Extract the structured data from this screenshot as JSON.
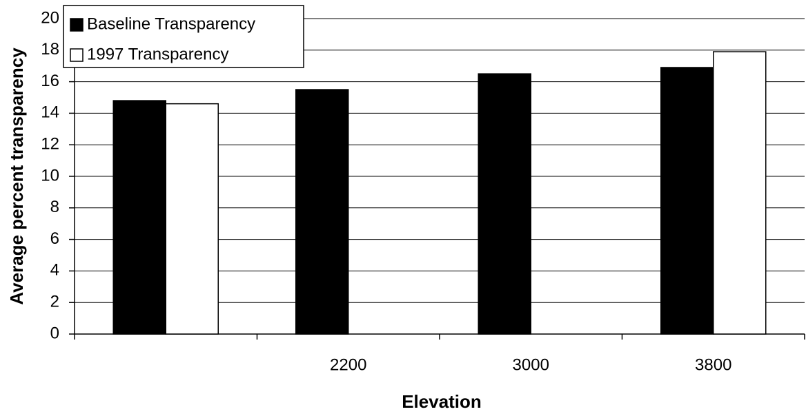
{
  "chart_data": {
    "type": "bar",
    "x_label": "Elevation",
    "y_label": "Average percent transparency",
    "categories": [
      null,
      "2200",
      "3000",
      "3800"
    ],
    "series": [
      {
        "name": "Baseline Transparency",
        "color": "#000000",
        "values": [
          14.8,
          15.5,
          16.5,
          16.9
        ]
      },
      {
        "name": "1997 Transparency",
        "color": "#ffffff",
        "values": [
          14.6,
          null,
          null,
          17.9
        ]
      }
    ],
    "ylim": [
      0,
      20
    ],
    "yticks": [
      0,
      2,
      4,
      6,
      8,
      10,
      12,
      14,
      16,
      18,
      20
    ],
    "grid": true,
    "legend": "upper left"
  }
}
